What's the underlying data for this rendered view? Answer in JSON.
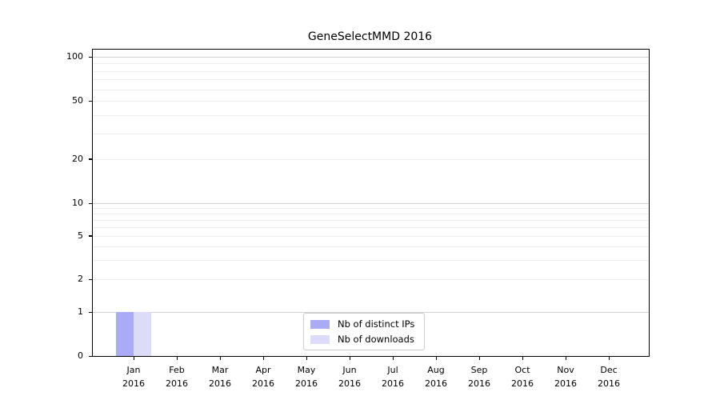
{
  "chart_data": {
    "type": "bar",
    "title": "GeneSelectMMD 2016",
    "x": {
      "months": [
        "Jan",
        "Feb",
        "Mar",
        "Apr",
        "May",
        "Jun",
        "Jul",
        "Aug",
        "Sep",
        "Oct",
        "Nov",
        "Dec"
      ],
      "year_line": "2016"
    },
    "series": [
      {
        "name": "Nb of distinct IPs",
        "color": "#aaabf5",
        "values": [
          1,
          0,
          0,
          0,
          0,
          0,
          0,
          0,
          0,
          0,
          0,
          0
        ]
      },
      {
        "name": "Nb of downloads",
        "color": "#dcdcf8",
        "values": [
          1,
          0,
          0,
          0,
          0,
          0,
          0,
          0,
          0,
          0,
          0,
          0
        ]
      }
    ],
    "y_axis": {
      "scale": "symlog",
      "range": [
        0,
        100
      ],
      "ticks": [
        0,
        1,
        2,
        5,
        10,
        20,
        50,
        100
      ],
      "major_gridlines": [
        1,
        10,
        100
      ],
      "minor_gridlines": [
        2,
        3,
        4,
        5,
        6,
        7,
        8,
        9,
        20,
        30,
        40,
        50,
        60,
        70,
        80,
        90
      ]
    },
    "legend": {
      "position": "bottom-center",
      "entries": [
        "Nb of distinct IPs",
        "Nb of downloads"
      ]
    },
    "grid": true
  },
  "colors": {
    "background": "#ffffff",
    "spine": "#000000",
    "grid_major": "#d2d2d2",
    "grid_minor": "#efefef",
    "text": "#000000",
    "legend_border": "#cccccc",
    "bar_distinct_ips": "#aaabf5",
    "bar_downloads": "#dcdcf8"
  }
}
